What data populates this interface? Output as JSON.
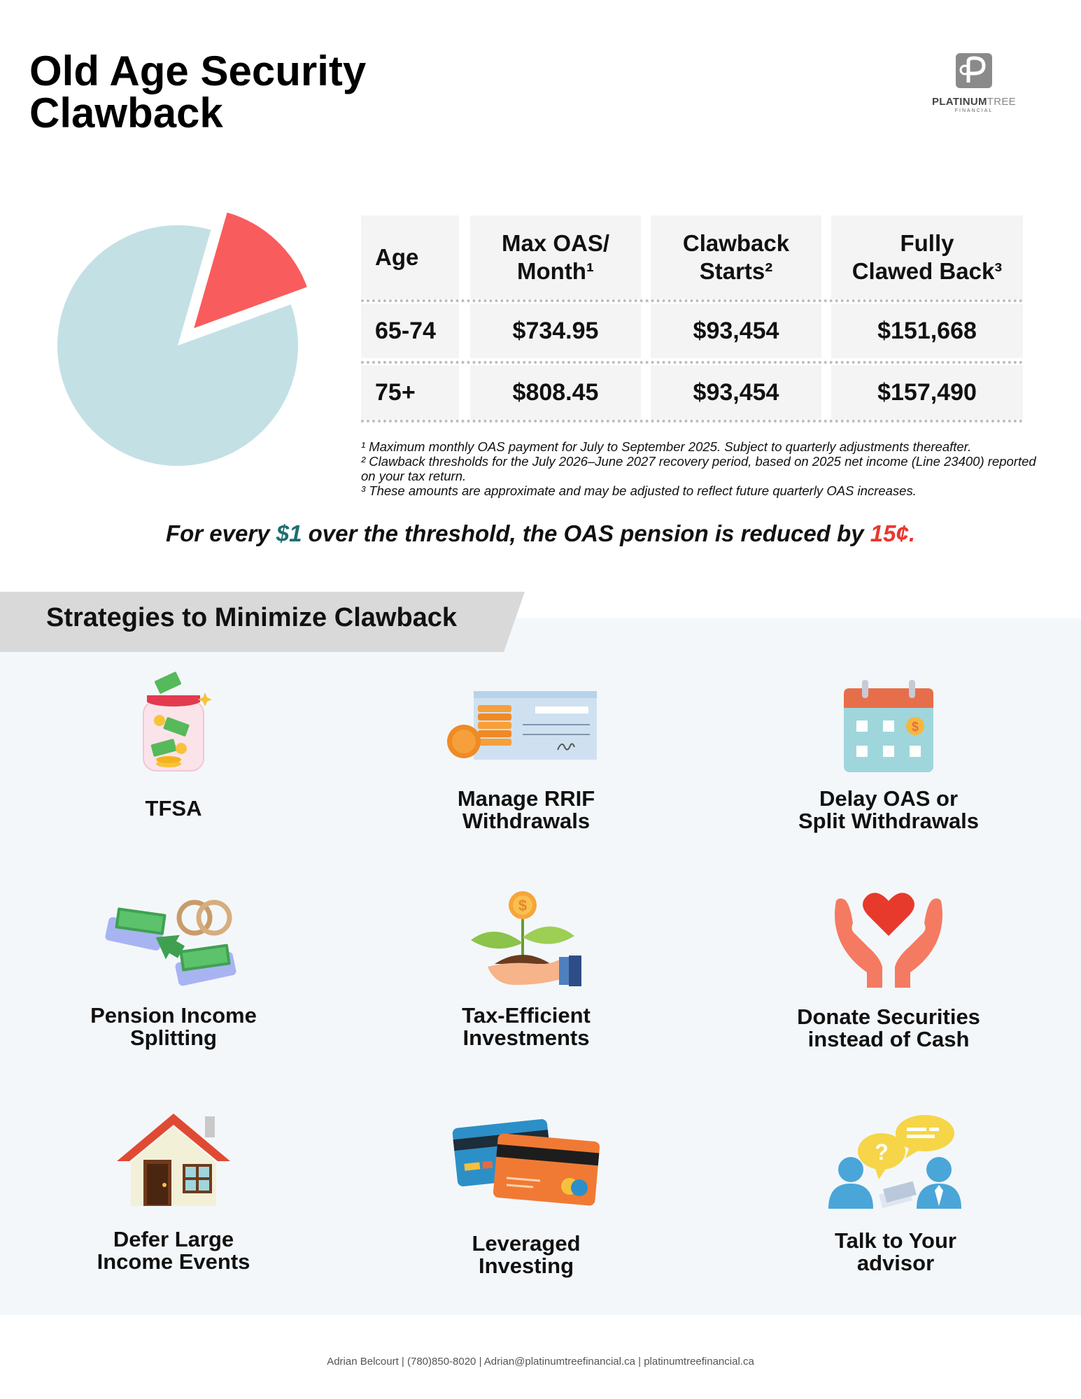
{
  "title": {
    "line1": "Old Age Security",
    "line2": "Clawback"
  },
  "logo": {
    "brand_bold": "PLATINUM",
    "brand_light": "TREE",
    "sub": "FINANCIAL"
  },
  "colors": {
    "pie_main": "#c3e0e5",
    "pie_slice": "#f95c5c",
    "teal": "#1e6e70",
    "red": "#e8382f"
  },
  "chart_data": {
    "type": "pie",
    "slices": [
      {
        "label": "",
        "value": 85,
        "color": "#c3e0e5"
      },
      {
        "label": "",
        "value": 15,
        "color": "#f95c5c",
        "exploded": true
      }
    ]
  },
  "table": {
    "headers": [
      {
        "line1": "Age",
        "line2": ""
      },
      {
        "line1": "Max OAS/",
        "line2": "Month¹"
      },
      {
        "line1": "Clawback",
        "line2": "Starts²"
      },
      {
        "line1": "Fully",
        "line2": "Clawed Back³"
      }
    ],
    "rows": [
      [
        "65-74",
        "$734.95",
        "$93,454",
        "$151,668"
      ],
      [
        "75+",
        "$808.45",
        "$93,454",
        "$157,490"
      ]
    ]
  },
  "notes": [
    "¹ Maximum monthly OAS payment for July to September 2025. Subject to quarterly adjustments thereafter.",
    "² Clawback thresholds for the July 2026–June 2027 recovery period, based on 2025 net income (Line 23400) reported on your tax return.",
    "³ These amounts are approximate and may be adjusted to reflect future quarterly OAS increases."
  ],
  "tagline": {
    "p1": "For every ",
    "amount": "$1",
    "p2": " over the threshold, the OAS pension is reduced by ",
    "reduction": "15¢."
  },
  "strategies_title": "Strategies to Minimize Clawback",
  "strategies": [
    {
      "icon": "money-jar-icon",
      "line1": "TFSA",
      "line2": ""
    },
    {
      "icon": "cheque-coins-icon",
      "line1": "Manage RRIF",
      "line2": "Withdrawals"
    },
    {
      "icon": "calendar-dollar-icon",
      "line1": "Delay OAS or",
      "line2": "Split Withdrawals"
    },
    {
      "icon": "rings-money-transfer-icon",
      "line1": "Pension Income",
      "line2": "Splitting"
    },
    {
      "icon": "money-plant-icon",
      "line1": "Tax-Efficient",
      "line2": "Investments"
    },
    {
      "icon": "hands-heart-icon",
      "line1": "Donate Securities",
      "line2": "instead of Cash"
    },
    {
      "icon": "house-icon",
      "line1": "Defer Large",
      "line2": "Income Events"
    },
    {
      "icon": "credit-cards-icon",
      "line1": "Leveraged",
      "line2": "Investing"
    },
    {
      "icon": "advisor-chat-icon",
      "line1": "Talk to Your",
      "line2": "advisor"
    }
  ],
  "footer": "Adrian Belcourt | (780)850-8020 | Adrian@platinumtreefinancial.ca | platinumtreefinancial.ca"
}
